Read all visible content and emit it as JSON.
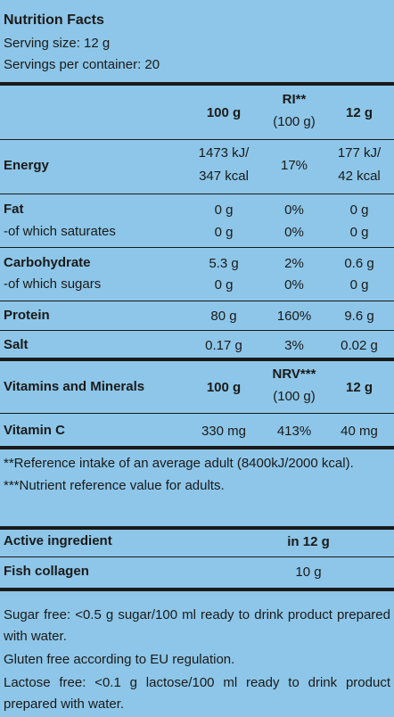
{
  "header": {
    "title": "Nutrition Facts",
    "serving_size": "Serving size: 12 g",
    "servings_per_container": "Servings per container: 20"
  },
  "nutrition_table": {
    "columns": {
      "per100": "100 g",
      "ri": "RI**",
      "ri_basis": "(100 g)",
      "per_serving": "12 g"
    },
    "rows": [
      {
        "name": "Energy",
        "per100": [
          "1473 kJ/",
          "347 kcal"
        ],
        "ri": "17%",
        "per_serving": [
          "177 kJ/",
          "42 kcal"
        ]
      },
      {
        "name": "Fat",
        "per100": "0 g",
        "ri": "0%",
        "per_serving": "0 g"
      },
      {
        "name": "-of which saturates",
        "per100": "0 g",
        "ri": "0%",
        "per_serving": "0 g"
      },
      {
        "name": "Carbohydrate",
        "per100": "5.3 g",
        "ri": "2%",
        "per_serving": "0.6 g"
      },
      {
        "name": "-of which sugars",
        "per100": "0 g",
        "ri": "0%",
        "per_serving": "0 g"
      },
      {
        "name": "Protein",
        "per100": "80 g",
        "ri": "160%",
        "per_serving": "9.6 g"
      },
      {
        "name": "Salt",
        "per100": "0.17 g",
        "ri": "3%",
        "per_serving": "0.02 g"
      }
    ]
  },
  "vitamins_table": {
    "title": "Vitamins and Minerals",
    "per100": "100 g",
    "nrv": "NRV***",
    "nrv_basis": "(100 g)",
    "per_serving": "12 g",
    "rows": [
      {
        "name": "Vitamin C",
        "per100": "330 mg",
        "nrv": "413%",
        "per_serving": "40 mg"
      }
    ]
  },
  "footnotes": [
    "**Reference intake of an average adult (8400kJ/2000 kcal).",
    "***Nutrient reference value for adults."
  ],
  "active_table": {
    "header_name": "Active ingredient",
    "header_amount": "in 12 g",
    "rows": [
      {
        "name": "Fish collagen",
        "amount": "10 g"
      }
    ]
  },
  "claims": [
    "Sugar free: <0.5 g sugar/100 ml ready to drink product prepared with water.",
    "Gluten free according to EU regulation.",
    "Lactose free: <0.1 g lactose/100 ml ready to drink product prepared with water."
  ]
}
